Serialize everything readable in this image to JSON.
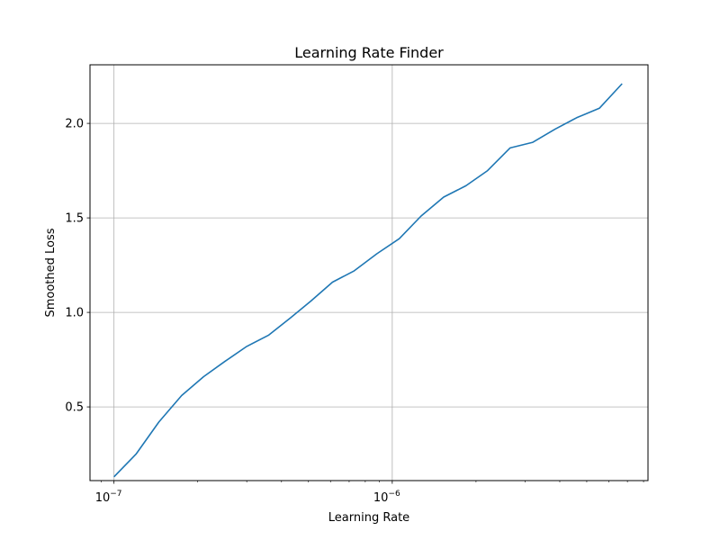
{
  "chart_data": {
    "type": "line",
    "title": "Learning Rate Finder",
    "xlabel": "Learning Rate",
    "ylabel": "Smoothed Loss",
    "xscale": "log",
    "xlim": [
      8.2e-08,
      8.3e-06
    ],
    "ylim": [
      0.11,
      2.31
    ],
    "grid": true,
    "x_major_ticks": [
      {
        "value": 1e-07,
        "base": "10",
        "exp": "−7"
      },
      {
        "value": 1e-06,
        "base": "10",
        "exp": "−6"
      }
    ],
    "y_ticks": [
      {
        "value": 0.5,
        "label": "0.5"
      },
      {
        "value": 1.0,
        "label": "1.0"
      },
      {
        "value": 1.5,
        "label": "1.5"
      },
      {
        "value": 2.0,
        "label": "2.0"
      }
    ],
    "series": [
      {
        "color": "#1f77b4",
        "x": [
          1e-07,
          1.2e-07,
          1.45e-07,
          1.75e-07,
          2.1e-07,
          2.5e-07,
          3e-07,
          3.6e-07,
          4.3e-07,
          5.1e-07,
          6.1e-07,
          7.3e-07,
          8.8e-07,
          1.06e-06,
          1.27e-06,
          1.53e-06,
          1.84e-06,
          2.2e-06,
          2.65e-06,
          3.2e-06,
          3.85e-06,
          4.6e-06,
          5.55e-06,
          6.7e-06
        ],
        "y": [
          0.13,
          0.25,
          0.42,
          0.56,
          0.66,
          0.74,
          0.82,
          0.88,
          0.97,
          1.06,
          1.16,
          1.22,
          1.31,
          1.39,
          1.51,
          1.61,
          1.67,
          1.75,
          1.87,
          1.9,
          1.97,
          2.03,
          2.08,
          2.21
        ]
      }
    ]
  }
}
